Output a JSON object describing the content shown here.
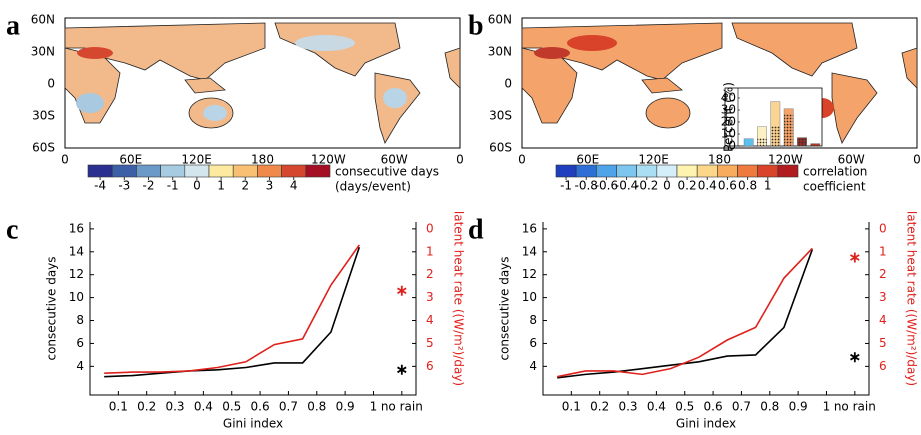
{
  "chart_data": [
    {
      "type": "map",
      "label": "a",
      "xtick_labels": [
        "0",
        "60E",
        "120E",
        "180",
        "120W",
        "60W",
        "0"
      ],
      "ytick_labels": [
        "60N",
        "30N",
        "0",
        "30S",
        "60S"
      ],
      "colorbar": {
        "colors": [
          "#2b2f8f",
          "#3d5fa8",
          "#6c9ac8",
          "#a7cbe0",
          "#d3e6ee",
          "#fde9a0",
          "#f9c074",
          "#ef8a4a",
          "#d5482f",
          "#a50f26"
        ],
        "ticks": [
          -4,
          -3,
          -2,
          -1,
          0,
          1,
          2,
          3,
          4
        ],
        "title": [
          "consecutive days",
          "(days/event)"
        ]
      }
    },
    {
      "type": "map",
      "label": "b",
      "xtick_labels": [
        "0",
        "60E",
        "120E",
        "180",
        "120W",
        "60W",
        "0"
      ],
      "ytick_labels": [
        "60N",
        "30N",
        "0",
        "30S",
        "60S"
      ],
      "colorbar": {
        "colors": [
          "#1f3fbf",
          "#2e6fd6",
          "#4fa3e8",
          "#7cc6ef",
          "#a9def3",
          "#d4effa",
          "#fff3b0",
          "#fcd78a",
          "#f8ad5e",
          "#ee7b3d",
          "#d8432a",
          "#b11c20"
        ],
        "ticks": [
          -1,
          -0.8,
          -0.6,
          -0.4,
          -0.2,
          0,
          0.2,
          0.4,
          0.6,
          0.8,
          1
        ],
        "title": [
          "correlation",
          "coefficient"
        ]
      },
      "inset": {
        "type": "bar",
        "ylabel": "Percent (%)",
        "categories": [
          null,
          null,
          null,
          null,
          null,
          null
        ],
        "ylim": [
          0,
          45
        ],
        "yticks": [
          0,
          10,
          20,
          30,
          40
        ],
        "series": [
          {
            "colors": [
              "#5bc0eb",
              "#fdf0c4",
              "#f9d494",
              "#f4a36a",
              "#8e2f2f",
              "#c0392b"
            ],
            "values": [
              6,
              16,
              37,
              31,
              7,
              2
            ]
          },
          {
            "hatch": true,
            "values": [
              0,
              7,
              17,
              27,
              6,
              1
            ]
          }
        ]
      }
    },
    {
      "type": "line",
      "label": "c",
      "xlabel": "Gini index",
      "ylabel": "consecutive days",
      "y2label": "latent heat rate ((W/m²)/day)",
      "x": [
        0.05,
        0.15,
        0.25,
        0.35,
        0.45,
        0.55,
        0.65,
        0.75,
        0.85,
        0.95
      ],
      "xlim": [
        0,
        1.15
      ],
      "xticks": [
        0.1,
        0.2,
        0.3,
        0.4,
        0.5,
        0.6,
        0.7,
        0.8,
        0.9,
        1,
        {
          "value": 1.1,
          "label": "no rain"
        }
      ],
      "ylim": [
        1.5,
        16.6
      ],
      "yticks": [
        4,
        6,
        8,
        10,
        12,
        14,
        16
      ],
      "y2lim": [
        7.25,
        -0.3
      ],
      "y2ticks": [
        0,
        1,
        2,
        3,
        4,
        5,
        6
      ],
      "series": [
        {
          "color": "#000000",
          "values": [
            3.1,
            3.2,
            3.4,
            3.6,
            3.7,
            3.9,
            4.3,
            4.3,
            7,
            14.4
          ],
          "no_rain_value": 3.7
        },
        {
          "color": "#e0201b",
          "axis": "y2",
          "values": [
            6.3,
            6.25,
            6.25,
            6.2,
            6.05,
            5.8,
            5.05,
            4.8,
            2.45,
            0.7
          ],
          "no_rain_value": 2.7
        }
      ]
    },
    {
      "type": "line",
      "label": "d",
      "xlabel": "Gini index",
      "ylabel": "consecutive days",
      "y2label": "latent heat rate ((W/m²)/day)",
      "x": [
        0.05,
        0.15,
        0.25,
        0.35,
        0.45,
        0.55,
        0.65,
        0.75,
        0.85,
        0.95
      ],
      "xlim": [
        0,
        1.15
      ],
      "xticks": [
        0.1,
        0.2,
        0.3,
        0.4,
        0.5,
        0.6,
        0.7,
        0.8,
        0.9,
        1,
        {
          "value": 1.1,
          "label": "no rain"
        }
      ],
      "ylim": [
        1.5,
        16.6
      ],
      "yticks": [
        4,
        6,
        8,
        10,
        12,
        14,
        16
      ],
      "y2lim": [
        7.25,
        -0.3
      ],
      "y2ticks": [
        0,
        1,
        2,
        3,
        4,
        5,
        6
      ],
      "series": [
        {
          "color": "#000000",
          "values": [
            3.0,
            3.3,
            3.5,
            3.8,
            4.1,
            4.4,
            4.9,
            5.0,
            7.4,
            14.2
          ],
          "no_rain_value": 4.8
        },
        {
          "color": "#e0201b",
          "axis": "y2",
          "values": [
            6.45,
            6.2,
            6.2,
            6.35,
            6.1,
            5.6,
            4.85,
            4.3,
            2.15,
            0.85
          ],
          "no_rain_value": 1.25
        }
      ]
    }
  ]
}
